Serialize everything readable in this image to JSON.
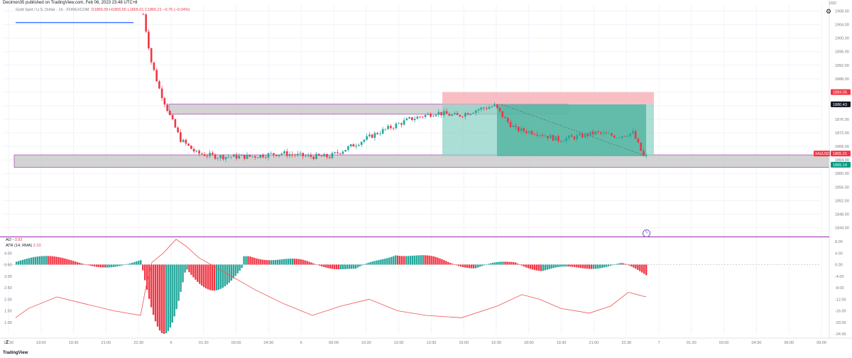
{
  "header": {
    "publisher": "Decimon35 published on TradingView.com, Feb 06, 2023 23:48 UTC+8",
    "symbol": "Gold Spot / U.S. Dollar · 1h · FOREXCOM",
    "ohlc": "O1865.55 H1865.55 L1865.01 C1865.21 −0.76 (−0.04%)",
    "currency": "USD"
  },
  "indicator1": {
    "name": "AO",
    "value": "−3.92"
  },
  "indicator2": {
    "name": "ATR (14, RMA)",
    "value": "2.10"
  },
  "brand": "TradingView",
  "clock_icon": "lightning-clock-icon",
  "settings_icon": "gear-icon",
  "colors": {
    "up": "#26a69a",
    "down": "#f23645",
    "grid": "#f0f3fa",
    "zone": "#c8c8c8",
    "zone_border": "#9c27b0",
    "stop": "#f7a8b0",
    "target": "#8fd3c5",
    "target_dark": "#4bb09c",
    "atr": "#ef5350",
    "level_line": "#2962ff"
  },
  "chart_data": [
    {
      "type": "candlestick",
      "title": "Gold Spot / U.S. Dollar",
      "ylim": [
        1842,
        1910
      ],
      "y_ticks": [
        "1908.00",
        "1904.00",
        "1900.00",
        "1896.00",
        "1892.00",
        "1888.00",
        "1884.00",
        "1880.00",
        "1876.00",
        "1872.00",
        "1868.00",
        "1864.00",
        "1860.00",
        "1856.00",
        "1852.00",
        "1848.00",
        "1844.00",
        "1840.00"
      ],
      "x_ticks": [
        "18:30",
        "19:00",
        "19:30",
        "21:00",
        "22:30",
        "6",
        "01:30",
        "03:00",
        "04:30",
        "6",
        "09:00",
        "10:30",
        "12:00",
        "13:30",
        "15:00",
        "16:30",
        "18:00",
        "19:30",
        "21:00",
        "22:30",
        "7",
        "01:30",
        "03:00",
        "04:30",
        "06:00",
        "09:00"
      ],
      "price_labels": [
        {
          "text": "1884.05",
          "kind": "stop"
        },
        {
          "text": "1880.43",
          "kind": "entry"
        },
        {
          "text": "1865.21",
          "kind": "current",
          "symbol": "XAUUSD"
        },
        {
          "text": "1865.14",
          "kind": "target"
        }
      ],
      "path": [
        [
          0,
          1907
        ],
        [
          3,
          1893
        ],
        [
          6,
          1885
        ],
        [
          10,
          1877
        ],
        [
          14,
          1870
        ],
        [
          20,
          1866
        ],
        [
          28,
          1865
        ],
        [
          40,
          1865
        ],
        [
          52,
          1866
        ],
        [
          62,
          1865
        ],
        [
          70,
          1865
        ],
        [
          78,
          1868
        ],
        [
          88,
          1872
        ],
        [
          100,
          1876
        ],
        [
          110,
          1878
        ],
        [
          118,
          1877
        ],
        [
          126,
          1879
        ],
        [
          132,
          1880
        ],
        [
          136,
          1876
        ],
        [
          140,
          1873
        ],
        [
          148,
          1872
        ],
        [
          156,
          1870
        ],
        [
          164,
          1871
        ],
        [
          170,
          1872
        ],
        [
          178,
          1871
        ],
        [
          184,
          1872
        ],
        [
          188,
          1865
        ]
      ],
      "zones": [
        {
          "name": "supply-zone",
          "from": 1877.5,
          "to": 1880.5
        },
        {
          "name": "demand-zone",
          "from": 1861.8,
          "to": 1865.5
        }
      ],
      "level_line": 1904.6,
      "position": {
        "type": "short",
        "entry": 1880.43,
        "stop": 1884.05,
        "target": 1865.14
      }
    },
    {
      "type": "bar",
      "title": "AO",
      "ylim": [
        -24,
        8
      ],
      "y_ticks": [
        "8.00",
        "4.00",
        "0.00",
        "-4.00",
        "-8.00",
        "-12.00",
        "-16.00",
        "-20.00",
        "-24.00"
      ],
      "latest": -3.92
    },
    {
      "type": "line",
      "title": "ATR (14, RMA)",
      "ylim": [
        0.5,
        4.5
      ],
      "y_ticks": [
        "4.00",
        "3.50",
        "3.00",
        "2.50",
        "2.00",
        "1.50",
        "1.00"
      ],
      "latest": 2.1
    }
  ]
}
